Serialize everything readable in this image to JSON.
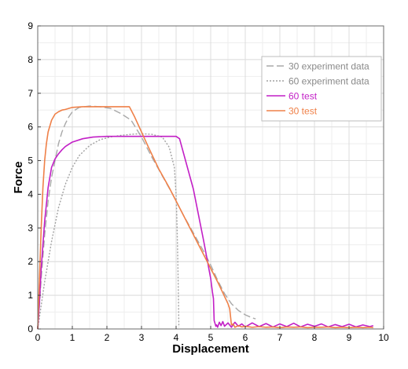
{
  "chart_data": {
    "type": "line",
    "title": "",
    "xlabel": "Displacement",
    "ylabel": "Force",
    "xlim": [
      0,
      10
    ],
    "ylim": [
      0,
      9
    ],
    "xticks": [
      0,
      1,
      2,
      3,
      4,
      5,
      6,
      7,
      8,
      9,
      10
    ],
    "yticks": [
      0,
      1,
      2,
      3,
      4,
      5,
      6,
      7,
      8,
      9
    ],
    "grid": true,
    "legend_position": "top-right",
    "series": [
      {
        "name": "30 experiment data",
        "color": "#a8a8a8",
        "style": "dashed",
        "x": [
          0,
          0.05,
          0.1,
          0.2,
          0.3,
          0.4,
          0.5,
          0.6,
          0.7,
          0.8,
          0.9,
          1.0,
          1.2,
          1.5,
          1.8,
          2.1,
          2.4,
          2.7,
          3.0,
          3.3,
          3.6,
          3.9,
          4.2,
          4.5,
          4.8,
          5.0,
          5.2,
          5.4,
          5.6,
          5.8,
          6.0,
          6.2,
          6.3
        ],
        "y": [
          0,
          0.7,
          1.5,
          2.8,
          3.8,
          4.5,
          5.0,
          5.5,
          5.85,
          6.1,
          6.3,
          6.45,
          6.58,
          6.62,
          6.6,
          6.55,
          6.4,
          6.2,
          5.7,
          5.1,
          4.55,
          4.0,
          3.4,
          2.85,
          2.3,
          1.9,
          1.45,
          1.05,
          0.75,
          0.55,
          0.42,
          0.33,
          0.3
        ]
      },
      {
        "name": "60 experiment data",
        "color": "#a0a0a0",
        "style": "dotted",
        "x": [
          0,
          0.1,
          0.2,
          0.4,
          0.6,
          0.8,
          1.0,
          1.2,
          1.5,
          1.8,
          2.1,
          2.4,
          2.7,
          3.0,
          3.3,
          3.6,
          3.8,
          3.95,
          4.0,
          4.03,
          4.05,
          4.07,
          4.08
        ],
        "y": [
          0,
          0.7,
          1.4,
          2.6,
          3.6,
          4.3,
          4.8,
          5.15,
          5.45,
          5.62,
          5.7,
          5.75,
          5.78,
          5.8,
          5.78,
          5.7,
          5.4,
          4.8,
          4.0,
          3.0,
          2.0,
          0.8,
          0.05
        ]
      },
      {
        "name": "60 test",
        "color": "#c21fc6",
        "style": "solid",
        "x": [
          0,
          0.05,
          0.1,
          0.2,
          0.3,
          0.4,
          0.5,
          0.6,
          0.7,
          0.8,
          1.0,
          1.3,
          1.6,
          2.0,
          2.5,
          3.0,
          3.5,
          4.0,
          4.1,
          4.5,
          4.8,
          5.0,
          5.05,
          5.08,
          5.1,
          5.15,
          5.17,
          5.2,
          5.25,
          5.3,
          5.35,
          5.4,
          5.5,
          5.6,
          5.7,
          5.8,
          5.9,
          6.0,
          6.2,
          6.4,
          6.6,
          6.8,
          7.0,
          7.2,
          7.4,
          7.6,
          7.8,
          8.0,
          8.2,
          8.4,
          8.6,
          8.8,
          9.0,
          9.2,
          9.4,
          9.6,
          9.7
        ],
        "y": [
          0,
          0.8,
          1.8,
          3.2,
          4.2,
          4.8,
          5.05,
          5.2,
          5.32,
          5.42,
          5.55,
          5.65,
          5.7,
          5.72,
          5.72,
          5.72,
          5.72,
          5.72,
          5.65,
          4.15,
          2.6,
          1.5,
          1.1,
          0.9,
          0.25,
          0.08,
          0.12,
          0.05,
          0.2,
          0.1,
          0.22,
          0.08,
          0.18,
          0.05,
          0.2,
          0.08,
          0.15,
          0.06,
          0.18,
          0.07,
          0.16,
          0.06,
          0.15,
          0.07,
          0.17,
          0.06,
          0.14,
          0.08,
          0.15,
          0.06,
          0.13,
          0.07,
          0.14,
          0.06,
          0.12,
          0.07,
          0.1
        ]
      },
      {
        "name": "30 test",
        "color": "#ef8048",
        "style": "solid",
        "x": [
          0,
          0.05,
          0.1,
          0.15,
          0.2,
          0.25,
          0.3,
          0.4,
          0.5,
          0.6,
          0.7,
          0.8,
          1.0,
          1.3,
          1.6,
          2.0,
          2.3,
          2.65,
          2.8,
          3.0,
          3.2,
          3.5,
          3.8,
          4.0,
          4.3,
          4.6,
          4.9,
          5.2,
          5.5,
          5.55,
          5.6,
          5.65,
          5.7,
          5.8,
          5.9,
          6.0,
          6.2,
          6.4,
          6.6,
          6.8,
          7.0,
          7.2,
          7.4,
          7.6,
          7.8,
          8.0,
          8.2,
          8.4,
          8.6,
          8.8,
          9.0,
          9.2,
          9.4,
          9.6,
          9.7
        ],
        "y": [
          0,
          1.5,
          3.0,
          4.2,
          5.0,
          5.5,
          5.85,
          6.2,
          6.38,
          6.45,
          6.5,
          6.52,
          6.58,
          6.6,
          6.6,
          6.6,
          6.6,
          6.6,
          6.3,
          5.85,
          5.4,
          4.75,
          4.2,
          3.8,
          3.2,
          2.6,
          2.0,
          1.4,
          0.75,
          0.6,
          0.12,
          0.15,
          0.05,
          0.1,
          0.06,
          0.08,
          0.05,
          0.07,
          0.05,
          0.06,
          0.04,
          0.06,
          0.05,
          0.06,
          0.04,
          0.05,
          0.05,
          0.06,
          0.04,
          0.05,
          0.04,
          0.05,
          0.04,
          0.05,
          0.04
        ]
      }
    ]
  }
}
